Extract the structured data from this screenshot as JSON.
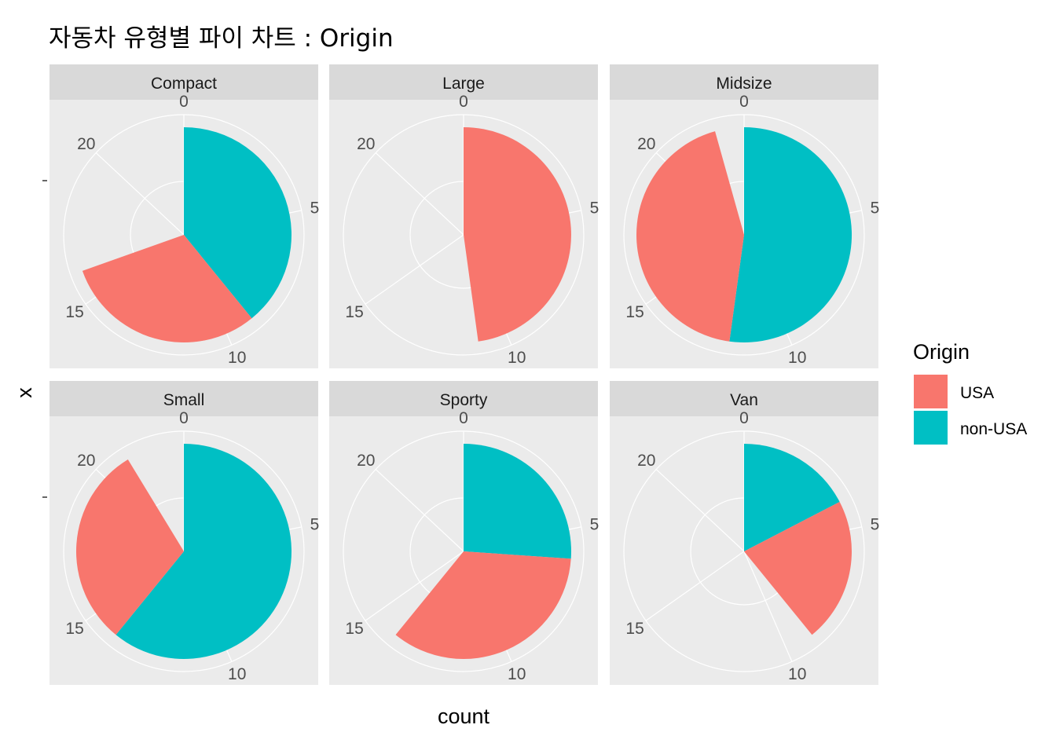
{
  "chart_data": {
    "type": "pie",
    "title": "자동차 유형별 파이 차트 : Origin",
    "xlabel": "count",
    "ylabel": "x",
    "theta_range": [
      0,
      23
    ],
    "theta_ticks": [
      "0",
      "5",
      "10",
      "15",
      "20"
    ],
    "grid": true,
    "legend_title": "Origin",
    "legend_position": "right",
    "categories": [
      "USA",
      "non-USA"
    ],
    "colors": {
      "USA": "#F8766D",
      "non-USA": "#00BFC4"
    },
    "panels": [
      {
        "name": "Compact",
        "segments": [
          {
            "origin": "non-USA",
            "count": 9
          },
          {
            "origin": "USA",
            "count": 7
          }
        ]
      },
      {
        "name": "Large",
        "segments": [
          {
            "origin": "USA",
            "count": 11
          }
        ]
      },
      {
        "name": "Midsize",
        "segments": [
          {
            "origin": "non-USA",
            "count": 12
          },
          {
            "origin": "USA",
            "count": 10
          }
        ]
      },
      {
        "name": "Small",
        "segments": [
          {
            "origin": "non-USA",
            "count": 14
          },
          {
            "origin": "USA",
            "count": 7
          }
        ]
      },
      {
        "name": "Sporty",
        "segments": [
          {
            "origin": "non-USA",
            "count": 6
          },
          {
            "origin": "USA",
            "count": 8
          }
        ]
      },
      {
        "name": "Van",
        "segments": [
          {
            "origin": "non-USA",
            "count": 4
          },
          {
            "origin": "USA",
            "count": 5
          }
        ]
      }
    ]
  }
}
